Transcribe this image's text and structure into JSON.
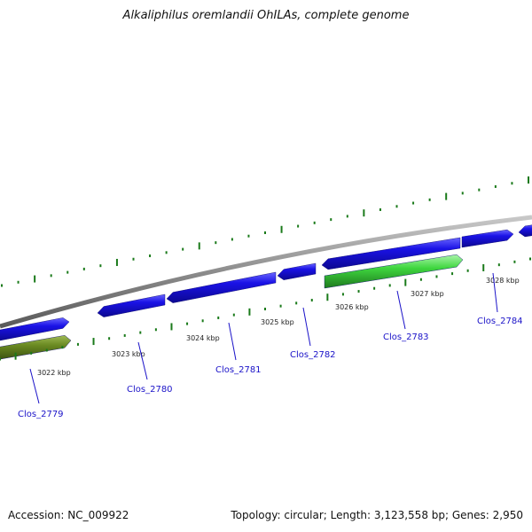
{
  "title": "Alkaliphilus oremlandii OhILAs, complete genome",
  "footer": {
    "accession": "Accession: NC_009922",
    "summary": "Topology: circular; Length: 3,123,558 bp; Genes: 2,950"
  },
  "colors": {
    "backbone": "#8c8c8c",
    "gene": "#1a12e6",
    "highlight_gene": "#3fd63f",
    "olive_gene": "#6a8a22",
    "tick": "#1a7a1a",
    "label": "#1a12c8"
  },
  "ticks": [
    {
      "label": "3022 kbp"
    },
    {
      "label": "3023 kbp"
    },
    {
      "label": "3024 kbp"
    },
    {
      "label": "3025 kbp"
    },
    {
      "label": "3026 kbp"
    },
    {
      "label": "3027 kbp"
    },
    {
      "label": "3028 kbp"
    }
  ],
  "genes": [
    {
      "label": "Clos_2779"
    },
    {
      "label": "Clos_2780"
    },
    {
      "label": "Clos_2781"
    },
    {
      "label": "Clos_2782"
    },
    {
      "label": "Clos_2783"
    },
    {
      "label": "Clos_2784"
    }
  ]
}
